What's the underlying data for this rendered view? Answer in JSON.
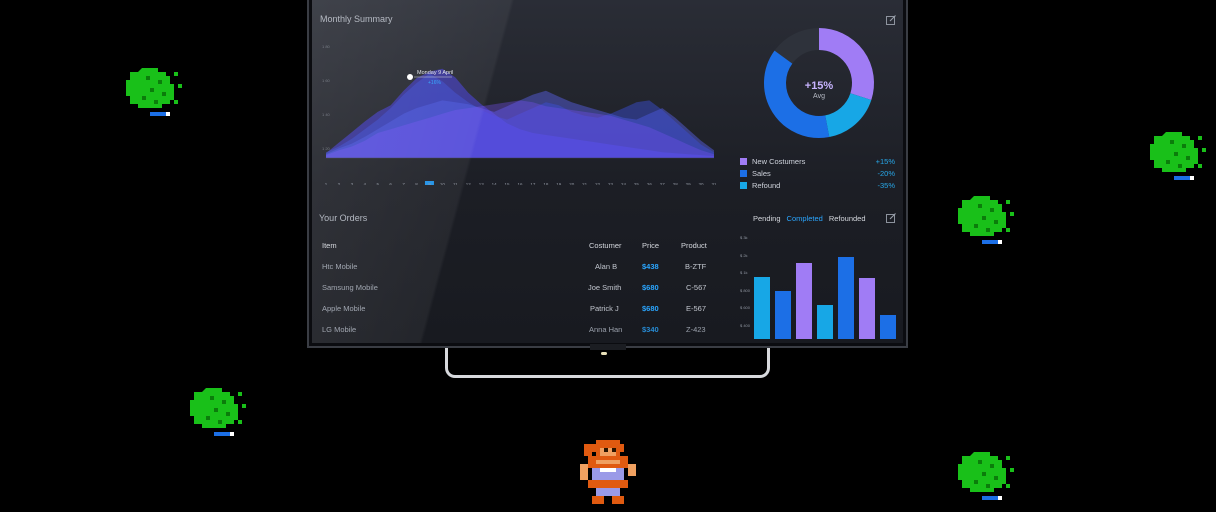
{
  "monthly_summary": {
    "title": "Monthly Summary",
    "tooltip_date": "Monday 9 April",
    "tooltip_value": "+16%",
    "x_ticks": [
      "1",
      "2",
      "3",
      "4",
      "5",
      "6",
      "7",
      "8",
      "9",
      "10",
      "11",
      "12",
      "13",
      "14",
      "15",
      "16",
      "17",
      "18",
      "19",
      "20",
      "21",
      "22",
      "23",
      "24",
      "25",
      "26",
      "27",
      "28",
      "29",
      "30",
      "31"
    ],
    "selected_tick": "9"
  },
  "donut": {
    "center_value": "+15%",
    "center_label": "Avg",
    "legend": [
      {
        "label": "New Costumers",
        "value": "+15%",
        "color": "#a07cf5"
      },
      {
        "label": "Sales",
        "value": "-20%",
        "color": "#1c6fe6"
      },
      {
        "label": "Refound",
        "value": "-35%",
        "color": "#17a7e6"
      }
    ]
  },
  "orders": {
    "title": "Your Orders",
    "headers": {
      "item": "Item",
      "customer": "Costumer",
      "price": "Price",
      "product": "Product"
    },
    "rows": [
      {
        "item": "Htc Mobile",
        "customer": "Alan B",
        "price": "$438",
        "product": "B-ZTF"
      },
      {
        "item": "Samsung Mobile",
        "customer": "Joe Smith",
        "price": "$680",
        "product": "C-567"
      },
      {
        "item": "Apple Mobile",
        "customer": "Patrick J",
        "price": "$680",
        "product": "E-567"
      },
      {
        "item": "LG Mobile",
        "customer": "Anna Han",
        "price": "$340",
        "product": "Z-423"
      }
    ]
  },
  "bar_panel": {
    "tabs": [
      {
        "label": "Pending",
        "active": false
      },
      {
        "label": "Completed",
        "active": true
      },
      {
        "label": "Refounded",
        "active": false
      }
    ],
    "y_ticks": [
      "$ 3k",
      "$ 2k",
      "$ 1k",
      "$ 800",
      "$ 600",
      "$ 400"
    ]
  },
  "chart_data": [
    {
      "type": "area",
      "title": "Monthly Summary",
      "x": [
        1,
        2,
        3,
        4,
        5,
        6,
        7,
        8,
        9,
        10,
        11,
        12,
        13,
        14,
        15,
        16,
        17,
        18,
        19,
        20,
        21,
        22,
        23,
        24,
        25,
        26,
        27,
        28,
        29,
        30,
        31
      ],
      "series": [
        {
          "values": [
            5,
            16,
            27,
            38,
            48,
            55,
            70,
            83,
            90,
            93,
            84,
            68,
            56,
            46,
            36,
            30,
            26,
            24,
            22,
            20,
            18,
            16,
            14,
            12,
            10,
            8,
            6,
            5,
            4,
            3,
            2
          ]
        },
        {
          "values": [
            4,
            10,
            15,
            22,
            30,
            38,
            46,
            52,
            56,
            60,
            58,
            56,
            52,
            48,
            54,
            60,
            66,
            70,
            64,
            58,
            54,
            50,
            46,
            42,
            40,
            46,
            52,
            42,
            30,
            18,
            8
          ]
        },
        {
          "values": [
            6,
            12,
            20,
            30,
            40,
            52,
            66,
            78,
            88,
            80,
            68,
            58,
            50,
            44,
            40,
            46,
            52,
            58,
            55,
            48,
            44,
            42,
            46,
            52,
            58,
            60,
            50,
            38,
            26,
            14,
            6
          ]
        },
        {
          "values": [
            3,
            8,
            12,
            18,
            26,
            30,
            34,
            38,
            42,
            46,
            50,
            52,
            54,
            56,
            58,
            60,
            58,
            54,
            52,
            50,
            48,
            46,
            44,
            40,
            36,
            32,
            26,
            20,
            14,
            8,
            4
          ]
        }
      ],
      "ylim": [
        0,
        100
      ]
    },
    {
      "type": "pie",
      "slices": [
        {
          "label": "New Costumers",
          "value": 30
        },
        {
          "label": "Sales",
          "value": 38
        },
        {
          "label": "Refound",
          "value": 17
        }
      ]
    },
    {
      "type": "bar",
      "values": [
        62,
        48,
        76,
        34,
        82,
        61,
        24
      ]
    }
  ],
  "colors": {
    "accent": "#2aa6ff",
    "purple": "#a07cf5",
    "blue": "#1c6fe6",
    "cyan": "#17a7e6"
  }
}
